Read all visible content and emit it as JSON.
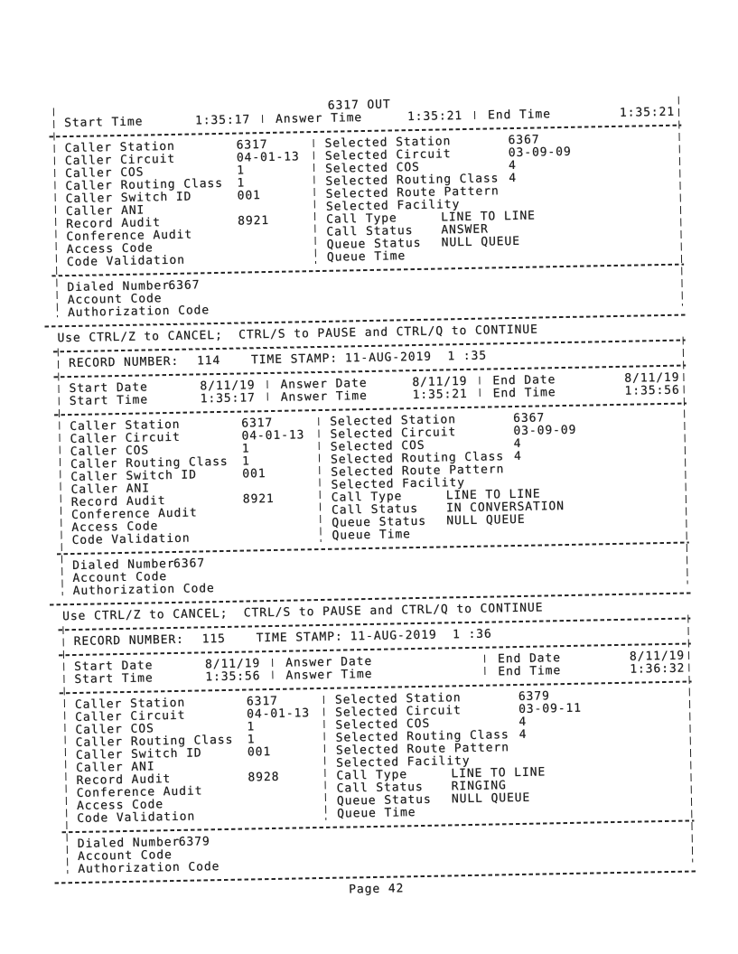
{
  "document": {
    "prompt": "Use CTRL/Z to CANCEL;  CTRL/S to PAUSE and CTRL/Q to CONTINUE",
    "page_footer": "Page 42"
  },
  "partial_record": {
    "title": "6317 OUT",
    "time_cols": [
      {
        "rows": [
          {
            "label": "Start Time",
            "value": "1:35:17"
          }
        ]
      },
      {
        "rows": [
          {
            "label": "Answer Time",
            "value": "1:35:21"
          }
        ]
      },
      {
        "rows": [
          {
            "label": "End Time",
            "value": "1:35:21"
          }
        ]
      }
    ],
    "caller_fields": [
      {
        "label": "Caller Station",
        "value": "6317"
      },
      {
        "label": "Caller Circuit",
        "value": "04-01-13"
      },
      {
        "label": "Caller COS",
        "value": "1"
      },
      {
        "label": "Caller Routing Class",
        "value": "1"
      },
      {
        "label": "Caller Switch ID",
        "value": "001"
      },
      {
        "label": "Caller ANI",
        "value": ""
      },
      {
        "label": "Record Audit",
        "value": "8921"
      },
      {
        "label": "Conference Audit",
        "value": ""
      },
      {
        "label": "Access Code",
        "value": ""
      },
      {
        "label": "Code Validation",
        "value": ""
      }
    ],
    "selected_fields": [
      {
        "label": "Selected Station",
        "value": "6367"
      },
      {
        "label": "Selected Circuit",
        "value": "03-09-09"
      },
      {
        "label": "Selected COS",
        "value": "4"
      },
      {
        "label": "Selected Routing Class",
        "value": "4"
      },
      {
        "label": "Selected Route Pattern",
        "value": ""
      },
      {
        "label": "Selected Facility",
        "value": ""
      },
      {
        "label": "Call Type",
        "value": "LINE TO LINE"
      },
      {
        "label": "Call Status",
        "value": "ANSWER"
      },
      {
        "label": "Queue Status",
        "value": "NULL QUEUE"
      },
      {
        "label": "Queue Time",
        "value": ""
      }
    ],
    "footer_fields": [
      {
        "label": "Dialed Number",
        "value": "6367"
      },
      {
        "label": "Account Code",
        "value": ""
      },
      {
        "label": "Authorization Code",
        "value": ""
      }
    ]
  },
  "records": [
    {
      "header": {
        "number_label": "RECORD NUMBER:",
        "number": "114",
        "stamp_label": "TIME STAMP:",
        "stamp": "11-AUG-2019  1 :35"
      },
      "date_cols": [
        {
          "rows": [
            {
              "label": "Start Date",
              "value": "8/11/19"
            },
            {
              "label": "Start Time",
              "value": "1:35:17"
            }
          ]
        },
        {
          "rows": [
            {
              "label": "Answer Date",
              "value": "8/11/19"
            },
            {
              "label": "Answer Time",
              "value": "1:35:21"
            }
          ]
        },
        {
          "rows": [
            {
              "label": "End Date",
              "value": "8/11/19"
            },
            {
              "label": "End Time",
              "value": "1:35:56"
            }
          ]
        }
      ],
      "caller_fields": [
        {
          "label": "Caller Station",
          "value": "6317"
        },
        {
          "label": "Caller Circuit",
          "value": "04-01-13"
        },
        {
          "label": "Caller COS",
          "value": "1"
        },
        {
          "label": "Caller Routing Class",
          "value": "1"
        },
        {
          "label": "Caller Switch ID",
          "value": "001"
        },
        {
          "label": "Caller ANI",
          "value": ""
        },
        {
          "label": "Record Audit",
          "value": "8921"
        },
        {
          "label": "Conference Audit",
          "value": ""
        },
        {
          "label": "Access Code",
          "value": ""
        },
        {
          "label": "Code Validation",
          "value": ""
        }
      ],
      "selected_fields": [
        {
          "label": "Selected Station",
          "value": "6367"
        },
        {
          "label": "Selected Circuit",
          "value": "03-09-09"
        },
        {
          "label": "Selected COS",
          "value": "4"
        },
        {
          "label": "Selected Routing Class",
          "value": "4"
        },
        {
          "label": "Selected Route Pattern",
          "value": ""
        },
        {
          "label": "Selected Facility",
          "value": ""
        },
        {
          "label": "Call Type",
          "value": "LINE TO LINE"
        },
        {
          "label": "Call Status",
          "value": "IN CONVERSATION"
        },
        {
          "label": "Queue Status",
          "value": "NULL QUEUE"
        },
        {
          "label": "Queue Time",
          "value": ""
        }
      ],
      "footer_fields": [
        {
          "label": "Dialed Number",
          "value": "6367"
        },
        {
          "label": "Account Code",
          "value": ""
        },
        {
          "label": "Authorization Code",
          "value": ""
        }
      ]
    },
    {
      "header": {
        "number_label": "RECORD NUMBER:",
        "number": "115",
        "stamp_label": "TIME STAMP:",
        "stamp": "11-AUG-2019  1 :36"
      },
      "date_cols": [
        {
          "rows": [
            {
              "label": "Start Date",
              "value": "8/11/19"
            },
            {
              "label": "Start Time",
              "value": "1:35:56"
            }
          ]
        },
        {
          "rows": [
            {
              "label": "Answer Date",
              "value": ""
            },
            {
              "label": "Answer Time",
              "value": ""
            }
          ]
        },
        {
          "rows": [
            {
              "label": "End Date",
              "value": "8/11/19"
            },
            {
              "label": "End Time",
              "value": "1:36:32"
            }
          ]
        }
      ],
      "caller_fields": [
        {
          "label": "Caller Station",
          "value": "6317"
        },
        {
          "label": "Caller Circuit",
          "value": "04-01-13"
        },
        {
          "label": "Caller COS",
          "value": "1"
        },
        {
          "label": "Caller Routing Class",
          "value": "1"
        },
        {
          "label": "Caller Switch ID",
          "value": "001"
        },
        {
          "label": "Caller ANI",
          "value": ""
        },
        {
          "label": "Record Audit",
          "value": "8928"
        },
        {
          "label": "Conference Audit",
          "value": ""
        },
        {
          "label": "Access Code",
          "value": ""
        },
        {
          "label": "Code Validation",
          "value": ""
        }
      ],
      "selected_fields": [
        {
          "label": "Selected Station",
          "value": "6379"
        },
        {
          "label": "Selected Circuit",
          "value": "03-09-11"
        },
        {
          "label": "Selected COS",
          "value": "4"
        },
        {
          "label": "Selected Routing Class",
          "value": "4"
        },
        {
          "label": "Selected Route Pattern",
          "value": ""
        },
        {
          "label": "Selected Facility",
          "value": ""
        },
        {
          "label": "Call Type",
          "value": "LINE TO LINE"
        },
        {
          "label": "Call Status",
          "value": "RINGING"
        },
        {
          "label": "Queue Status",
          "value": "NULL QUEUE"
        },
        {
          "label": "Queue Time",
          "value": ""
        }
      ],
      "footer_fields": [
        {
          "label": "Dialed Number",
          "value": "6379"
        },
        {
          "label": "Account Code",
          "value": ""
        },
        {
          "label": "Authorization Code",
          "value": ""
        }
      ]
    }
  ]
}
